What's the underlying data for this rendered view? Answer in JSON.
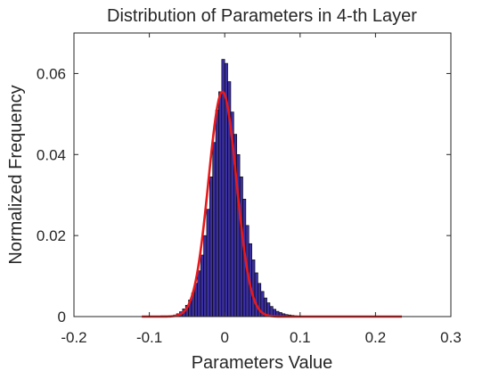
{
  "chart_data": {
    "type": "bar",
    "title": "Distribution of Parameters in 4-th Layer",
    "xlabel": "Parameters Value",
    "ylabel": "Normalized Frequency",
    "xlim": [
      -0.2,
      0.3
    ],
    "ylim": [
      0,
      0.07
    ],
    "xticks": [
      -0.2,
      -0.1,
      0,
      0.1,
      0.2,
      0.3
    ],
    "xtick_labels": [
      "-0.2",
      "-0.1",
      "0",
      "0.1",
      "0.2",
      "0.3"
    ],
    "yticks": [
      0,
      0.02,
      0.04,
      0.06
    ],
    "ytick_labels": [
      "0",
      "0.02",
      "0.04",
      "0.06"
    ],
    "grid": false,
    "bar_color": "#3a2fa0",
    "bar_edge_color": "#000000",
    "curve_color": "#e8191a",
    "histogram": {
      "bin_width": 0.004,
      "bin_centers": [
        -0.07,
        -0.066,
        -0.062,
        -0.058,
        -0.054,
        -0.05,
        -0.046,
        -0.042,
        -0.038,
        -0.034,
        -0.03,
        -0.026,
        -0.022,
        -0.018,
        -0.014,
        -0.01,
        -0.006,
        -0.002,
        0.002,
        0.006,
        0.01,
        0.014,
        0.018,
        0.022,
        0.026,
        0.03,
        0.034,
        0.038,
        0.042,
        0.046,
        0.05,
        0.054,
        0.058,
        0.062,
        0.066,
        0.07,
        0.074,
        0.078,
        0.082,
        0.086,
        0.09,
        0.094,
        0.098,
        0.102,
        0.106,
        0.11
      ],
      "values": [
        0.0002,
        0.0004,
        0.0007,
        0.0012,
        0.0019,
        0.0028,
        0.0041,
        0.0058,
        0.0082,
        0.0113,
        0.0152,
        0.02,
        0.0265,
        0.0345,
        0.043,
        0.051,
        0.0555,
        0.0635,
        0.0625,
        0.058,
        0.0505,
        0.045,
        0.04,
        0.0345,
        0.029,
        0.0225,
        0.018,
        0.014,
        0.0108,
        0.0082,
        0.0062,
        0.0046,
        0.0034,
        0.0025,
        0.0018,
        0.0013,
        0.001,
        0.0007,
        0.0005,
        0.0004,
        0.0003,
        0.0002,
        0.00015,
        0.0001,
        0.0001,
        5e-05
      ]
    },
    "fit_curve": {
      "type": "gaussian",
      "mean": -0.003,
      "peak": 0.0555,
      "sigma": 0.0185,
      "x_range": [
        -0.11,
        0.235
      ]
    }
  }
}
